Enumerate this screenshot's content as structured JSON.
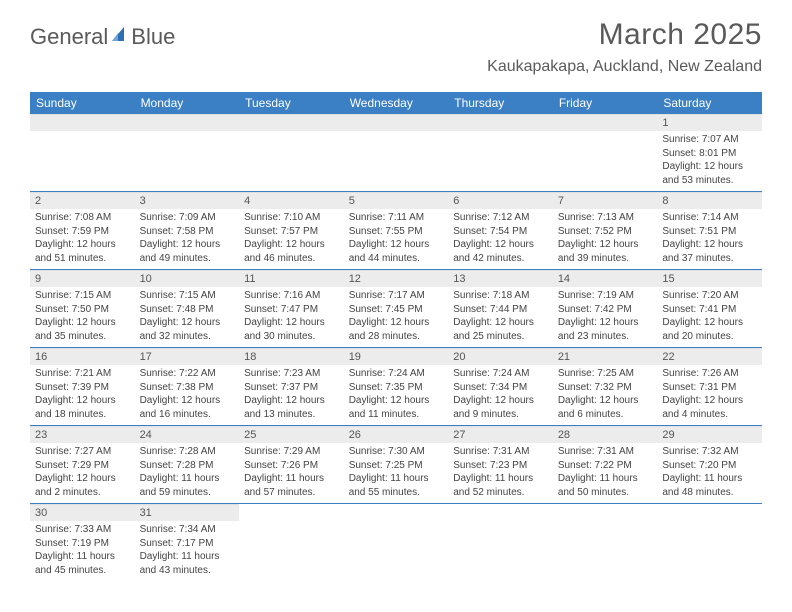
{
  "logo": {
    "word1": "General",
    "word2": "Blue"
  },
  "title": "March 2025",
  "location": "Kaukapakapa, Auckland, New Zealand",
  "colors": {
    "header_bg": "#3b7fc4",
    "header_text": "#ffffff",
    "daynum_bg": "#ececec",
    "row_border": "#3b7fc4",
    "text": "#5a5a5a",
    "cell_text": "#444444",
    "logo_accent": "#2e6fb3"
  },
  "day_headers": [
    "Sunday",
    "Monday",
    "Tuesday",
    "Wednesday",
    "Thursday",
    "Friday",
    "Saturday"
  ],
  "weeks": [
    [
      null,
      null,
      null,
      null,
      null,
      null,
      {
        "n": "1",
        "sr": "Sunrise: 7:07 AM",
        "ss": "Sunset: 8:01 PM",
        "dl1": "Daylight: 12 hours",
        "dl2": "and 53 minutes."
      }
    ],
    [
      {
        "n": "2",
        "sr": "Sunrise: 7:08 AM",
        "ss": "Sunset: 7:59 PM",
        "dl1": "Daylight: 12 hours",
        "dl2": "and 51 minutes."
      },
      {
        "n": "3",
        "sr": "Sunrise: 7:09 AM",
        "ss": "Sunset: 7:58 PM",
        "dl1": "Daylight: 12 hours",
        "dl2": "and 49 minutes."
      },
      {
        "n": "4",
        "sr": "Sunrise: 7:10 AM",
        "ss": "Sunset: 7:57 PM",
        "dl1": "Daylight: 12 hours",
        "dl2": "and 46 minutes."
      },
      {
        "n": "5",
        "sr": "Sunrise: 7:11 AM",
        "ss": "Sunset: 7:55 PM",
        "dl1": "Daylight: 12 hours",
        "dl2": "and 44 minutes."
      },
      {
        "n": "6",
        "sr": "Sunrise: 7:12 AM",
        "ss": "Sunset: 7:54 PM",
        "dl1": "Daylight: 12 hours",
        "dl2": "and 42 minutes."
      },
      {
        "n": "7",
        "sr": "Sunrise: 7:13 AM",
        "ss": "Sunset: 7:52 PM",
        "dl1": "Daylight: 12 hours",
        "dl2": "and 39 minutes."
      },
      {
        "n": "8",
        "sr": "Sunrise: 7:14 AM",
        "ss": "Sunset: 7:51 PM",
        "dl1": "Daylight: 12 hours",
        "dl2": "and 37 minutes."
      }
    ],
    [
      {
        "n": "9",
        "sr": "Sunrise: 7:15 AM",
        "ss": "Sunset: 7:50 PM",
        "dl1": "Daylight: 12 hours",
        "dl2": "and 35 minutes."
      },
      {
        "n": "10",
        "sr": "Sunrise: 7:15 AM",
        "ss": "Sunset: 7:48 PM",
        "dl1": "Daylight: 12 hours",
        "dl2": "and 32 minutes."
      },
      {
        "n": "11",
        "sr": "Sunrise: 7:16 AM",
        "ss": "Sunset: 7:47 PM",
        "dl1": "Daylight: 12 hours",
        "dl2": "and 30 minutes."
      },
      {
        "n": "12",
        "sr": "Sunrise: 7:17 AM",
        "ss": "Sunset: 7:45 PM",
        "dl1": "Daylight: 12 hours",
        "dl2": "and 28 minutes."
      },
      {
        "n": "13",
        "sr": "Sunrise: 7:18 AM",
        "ss": "Sunset: 7:44 PM",
        "dl1": "Daylight: 12 hours",
        "dl2": "and 25 minutes."
      },
      {
        "n": "14",
        "sr": "Sunrise: 7:19 AM",
        "ss": "Sunset: 7:42 PM",
        "dl1": "Daylight: 12 hours",
        "dl2": "and 23 minutes."
      },
      {
        "n": "15",
        "sr": "Sunrise: 7:20 AM",
        "ss": "Sunset: 7:41 PM",
        "dl1": "Daylight: 12 hours",
        "dl2": "and 20 minutes."
      }
    ],
    [
      {
        "n": "16",
        "sr": "Sunrise: 7:21 AM",
        "ss": "Sunset: 7:39 PM",
        "dl1": "Daylight: 12 hours",
        "dl2": "and 18 minutes."
      },
      {
        "n": "17",
        "sr": "Sunrise: 7:22 AM",
        "ss": "Sunset: 7:38 PM",
        "dl1": "Daylight: 12 hours",
        "dl2": "and 16 minutes."
      },
      {
        "n": "18",
        "sr": "Sunrise: 7:23 AM",
        "ss": "Sunset: 7:37 PM",
        "dl1": "Daylight: 12 hours",
        "dl2": "and 13 minutes."
      },
      {
        "n": "19",
        "sr": "Sunrise: 7:24 AM",
        "ss": "Sunset: 7:35 PM",
        "dl1": "Daylight: 12 hours",
        "dl2": "and 11 minutes."
      },
      {
        "n": "20",
        "sr": "Sunrise: 7:24 AM",
        "ss": "Sunset: 7:34 PM",
        "dl1": "Daylight: 12 hours",
        "dl2": "and 9 minutes."
      },
      {
        "n": "21",
        "sr": "Sunrise: 7:25 AM",
        "ss": "Sunset: 7:32 PM",
        "dl1": "Daylight: 12 hours",
        "dl2": "and 6 minutes."
      },
      {
        "n": "22",
        "sr": "Sunrise: 7:26 AM",
        "ss": "Sunset: 7:31 PM",
        "dl1": "Daylight: 12 hours",
        "dl2": "and 4 minutes."
      }
    ],
    [
      {
        "n": "23",
        "sr": "Sunrise: 7:27 AM",
        "ss": "Sunset: 7:29 PM",
        "dl1": "Daylight: 12 hours",
        "dl2": "and 2 minutes."
      },
      {
        "n": "24",
        "sr": "Sunrise: 7:28 AM",
        "ss": "Sunset: 7:28 PM",
        "dl1": "Daylight: 11 hours",
        "dl2": "and 59 minutes."
      },
      {
        "n": "25",
        "sr": "Sunrise: 7:29 AM",
        "ss": "Sunset: 7:26 PM",
        "dl1": "Daylight: 11 hours",
        "dl2": "and 57 minutes."
      },
      {
        "n": "26",
        "sr": "Sunrise: 7:30 AM",
        "ss": "Sunset: 7:25 PM",
        "dl1": "Daylight: 11 hours",
        "dl2": "and 55 minutes."
      },
      {
        "n": "27",
        "sr": "Sunrise: 7:31 AM",
        "ss": "Sunset: 7:23 PM",
        "dl1": "Daylight: 11 hours",
        "dl2": "and 52 minutes."
      },
      {
        "n": "28",
        "sr": "Sunrise: 7:31 AM",
        "ss": "Sunset: 7:22 PM",
        "dl1": "Daylight: 11 hours",
        "dl2": "and 50 minutes."
      },
      {
        "n": "29",
        "sr": "Sunrise: 7:32 AM",
        "ss": "Sunset: 7:20 PM",
        "dl1": "Daylight: 11 hours",
        "dl2": "and 48 minutes."
      }
    ],
    [
      {
        "n": "30",
        "sr": "Sunrise: 7:33 AM",
        "ss": "Sunset: 7:19 PM",
        "dl1": "Daylight: 11 hours",
        "dl2": "and 45 minutes."
      },
      {
        "n": "31",
        "sr": "Sunrise: 7:34 AM",
        "ss": "Sunset: 7:17 PM",
        "dl1": "Daylight: 11 hours",
        "dl2": "and 43 minutes."
      },
      null,
      null,
      null,
      null,
      null
    ]
  ]
}
